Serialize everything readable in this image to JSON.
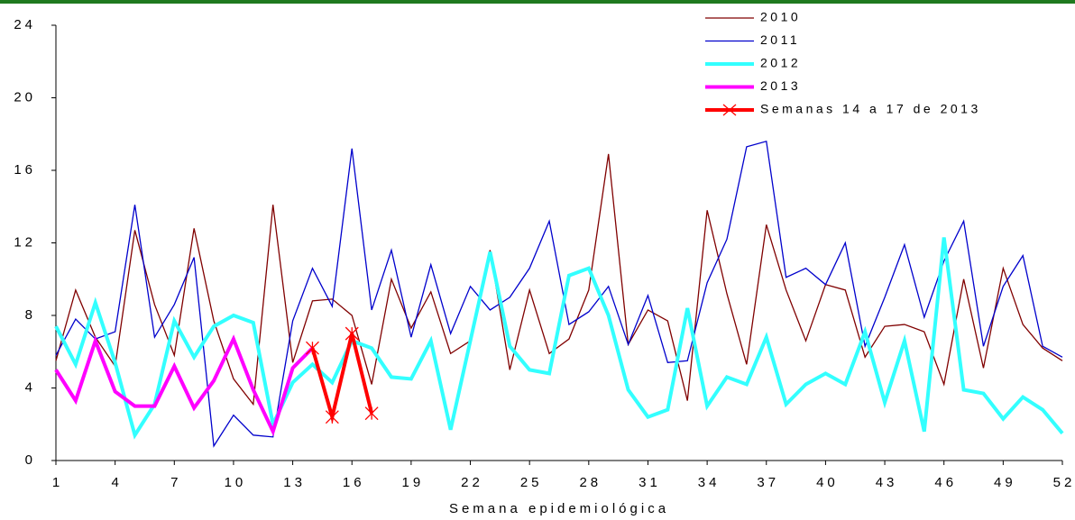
{
  "chart_data": {
    "type": "line",
    "x_label": "Semana epidemiológica",
    "x": [
      1,
      2,
      3,
      4,
      5,
      6,
      7,
      8,
      9,
      10,
      11,
      12,
      13,
      14,
      15,
      16,
      17,
      18,
      19,
      20,
      21,
      22,
      23,
      24,
      25,
      26,
      27,
      28,
      29,
      30,
      31,
      32,
      33,
      34,
      35,
      36,
      37,
      38,
      39,
      40,
      41,
      42,
      43,
      44,
      45,
      46,
      47,
      48,
      49,
      50,
      51,
      52
    ],
    "xlim": [
      1,
      52
    ],
    "xticks": [
      1,
      4,
      7,
      10,
      13,
      16,
      19,
      22,
      25,
      28,
      31,
      34,
      37,
      40,
      43,
      46,
      49,
      52
    ],
    "ylim": [
      0,
      24
    ],
    "yticks": [
      0,
      4,
      8,
      12,
      16,
      20,
      24
    ],
    "series": [
      {
        "name": "2010",
        "color": "#800000",
        "width": 1.3,
        "values": [
          5.5,
          9.4,
          6.8,
          5.2,
          12.7,
          8.6,
          5.8,
          12.8,
          7.7,
          4.5,
          3.1,
          14.1,
          5.4,
          8.8,
          8.9,
          8.0,
          4.2,
          10.0,
          7.3,
          9.3,
          5.9,
          6.6,
          11.6,
          5.0,
          9.4,
          5.9,
          6.7,
          9.4,
          16.9,
          6.4,
          8.3,
          7.7,
          3.3,
          13.8,
          9.2,
          5.3,
          13.0,
          9.4,
          6.6,
          9.7,
          9.4,
          5.7,
          7.4,
          7.5,
          7.1,
          4.2,
          10.0,
          5.1,
          10.6,
          7.5,
          6.2,
          5.5
        ]
      },
      {
        "name": "2011",
        "color": "#0000cc",
        "width": 1.3,
        "values": [
          5.8,
          7.8,
          6.7,
          7.1,
          14.1,
          6.8,
          8.6,
          11.2,
          0.8,
          2.5,
          1.4,
          1.3,
          7.7,
          10.6,
          8.5,
          17.2,
          8.3,
          11.6,
          6.8,
          10.8,
          7.0,
          9.6,
          8.3,
          9.0,
          10.6,
          13.2,
          7.5,
          8.2,
          9.6,
          6.4,
          9.1,
          5.4,
          5.5,
          9.8,
          12.2,
          17.3,
          17.6,
          10.1,
          10.6,
          9.7,
          12.0,
          6.3,
          9.0,
          11.9,
          7.9,
          11.0,
          13.2,
          6.3,
          9.6,
          11.3,
          6.3,
          5.7
        ]
      },
      {
        "name": "2012",
        "color": "#33ffff",
        "width": 4,
        "values": [
          7.4,
          5.3,
          8.7,
          5.4,
          1.4,
          3.1,
          7.7,
          5.7,
          7.4,
          8.0,
          7.6,
          2.0,
          4.3,
          5.3,
          4.3,
          6.6,
          6.2,
          4.6,
          4.5,
          6.6,
          1.7,
          6.6,
          11.5,
          6.3,
          5.0,
          4.8,
          10.2,
          10.6,
          8.0,
          3.9,
          2.4,
          2.8,
          8.4,
          3.0,
          4.6,
          4.2,
          6.8,
          3.1,
          4.2,
          4.8,
          4.2,
          7.1,
          3.2,
          6.6,
          1.6,
          12.3,
          3.9,
          3.7,
          2.3,
          3.5,
          2.8,
          1.5
        ]
      },
      {
        "name": "2013",
        "color": "#ff00ff",
        "width": 4,
        "values": [
          5.0,
          3.3,
          6.6,
          3.8,
          3.0,
          3.0,
          5.2,
          2.9,
          4.4,
          6.7,
          3.9,
          1.6,
          5.1,
          6.2,
          null,
          null,
          null,
          null,
          null,
          null,
          null,
          null,
          null,
          null,
          null,
          null,
          null,
          null,
          null,
          null,
          null,
          null,
          null,
          null,
          null,
          null,
          null,
          null,
          null,
          null,
          null,
          null,
          null,
          null,
          null,
          null,
          null,
          null,
          null,
          null,
          null,
          null
        ]
      },
      {
        "name": "Semanas 14 a 17 de 2013",
        "color": "#ff0000",
        "width": 4,
        "marker": "x",
        "x": [
          14,
          15,
          16,
          17
        ],
        "values": [
          6.2,
          2.4,
          7.0,
          2.6
        ]
      }
    ]
  }
}
